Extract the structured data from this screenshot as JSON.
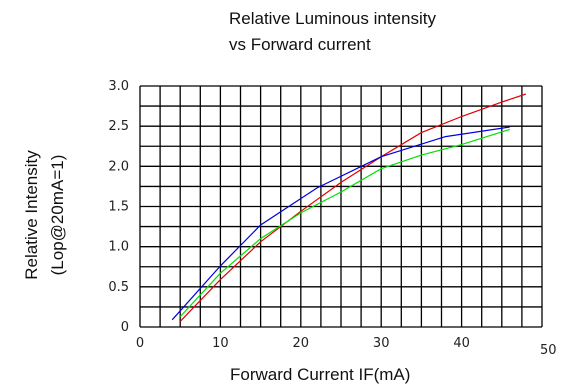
{
  "chart_data": {
    "type": "line",
    "title": [
      "Relative Luminous intensity",
      "vs Forward current"
    ],
    "xlabel": "Forward Current IF(mA)",
    "ylabel": [
      "Relative Intensity",
      "(Lop@20mA=1)"
    ],
    "xlim": [
      0,
      50
    ],
    "ylim": [
      0,
      3.0
    ],
    "x_ticks": [
      "0",
      "10",
      "20",
      "30",
      "40",
      "50"
    ],
    "x_tick_values": [
      0,
      10,
      20,
      30,
      40,
      50
    ],
    "y_ticks": [
      "0",
      "0.5",
      "1.0",
      "1.5",
      "2.0",
      "2.5",
      "3.0"
    ],
    "y_tick_values": [
      0,
      0.5,
      1.0,
      1.5,
      2.0,
      2.5,
      3.0
    ],
    "grid": true,
    "legend": false,
    "series": [
      {
        "color": "#e00000",
        "x": [
          5,
          10,
          15,
          20,
          25,
          30,
          35,
          40,
          45,
          48
        ],
        "y": [
          0.07,
          0.59,
          1.06,
          1.44,
          1.8,
          2.12,
          2.42,
          2.62,
          2.8,
          2.9
        ]
      },
      {
        "color": "#0000e0",
        "x": [
          4,
          10,
          15,
          22,
          30,
          38,
          46
        ],
        "y": [
          0.09,
          0.76,
          1.27,
          1.73,
          2.12,
          2.37,
          2.49
        ]
      },
      {
        "color": "#00e000",
        "x": [
          5,
          10,
          15,
          20,
          25,
          30,
          35,
          40,
          46
        ],
        "y": [
          0.13,
          0.67,
          1.1,
          1.42,
          1.68,
          1.97,
          2.14,
          2.27,
          2.46
        ]
      }
    ]
  }
}
